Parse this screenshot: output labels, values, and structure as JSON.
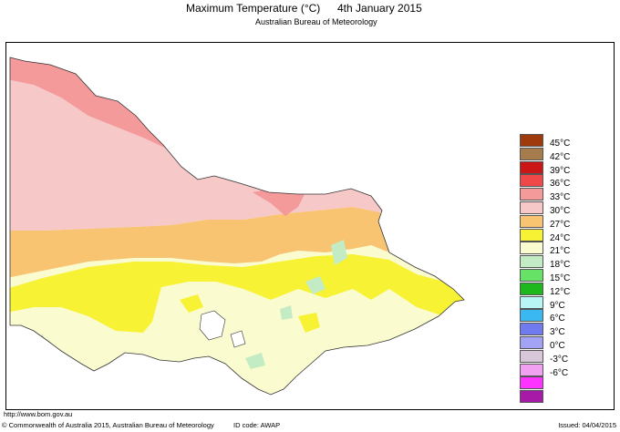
{
  "title": {
    "main": "Maximum Temperature (°C)",
    "date": "4th January 2015",
    "subtitle": "Australian Bureau of Meteorology"
  },
  "legend": [
    {
      "label": "45°C",
      "color": "#9e3a0c"
    },
    {
      "label": "42°C",
      "color": "#a77c4d"
    },
    {
      "label": "39°C",
      "color": "#cc1616"
    },
    {
      "label": "36°C",
      "color": "#f04848"
    },
    {
      "label": "33°C",
      "color": "#f59a9a"
    },
    {
      "label": "30°C",
      "color": "#f7c8c8"
    },
    {
      "label": "27°C",
      "color": "#f8c472"
    },
    {
      "label": "24°C",
      "color": "#f7f234"
    },
    {
      "label": "21°C",
      "color": "#fbfbd0"
    },
    {
      "label": "18°C",
      "color": "#c4ecc4"
    },
    {
      "label": "15°C",
      "color": "#66e366"
    },
    {
      "label": "12°C",
      "color": "#1cb81c"
    },
    {
      "label": "9°C",
      "color": "#b8f5f5"
    },
    {
      "label": "6°C",
      "color": "#3ab8f2"
    },
    {
      "label": "3°C",
      "color": "#6f7bef"
    },
    {
      "label": "0°C",
      "color": "#a3a3f5"
    },
    {
      "label": "-3°C",
      "color": "#d8c7d8"
    },
    {
      "label": "-6°C",
      "color": "#f2a0f2"
    },
    {
      "label": "",
      "color": "#ff33ff"
    },
    {
      "label": "",
      "color": "#a71aa7"
    }
  ],
  "footer": {
    "website": "http://www.bom.gov.au",
    "copyright": "© Commonwealth of Australia 2015, Australian Bureau of Meteorology",
    "id_code": "ID code: AWAP",
    "issued": "Issued: 04/04/2015"
  }
}
